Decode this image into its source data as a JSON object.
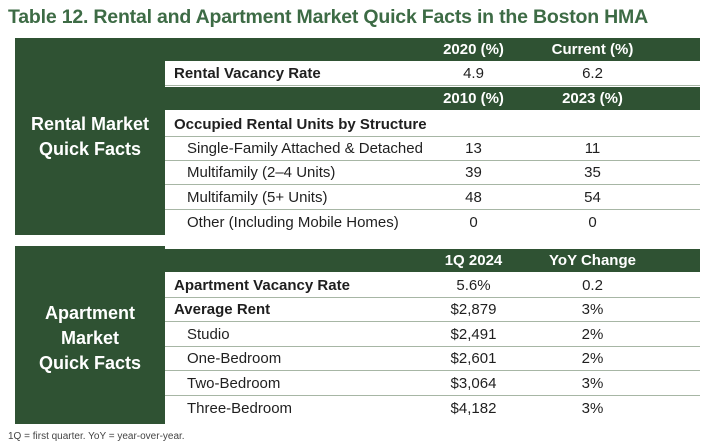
{
  "title": "Table 12. Rental and Apartment Market Quick Facts in the Boston HMA",
  "rental": {
    "side_label": "Rental Market\nQuick Facts",
    "header1": {
      "c2": "2020 (%)",
      "c3": "Current (%)"
    },
    "vacancy": {
      "label": "Rental Vacancy Rate",
      "c2": "4.9",
      "c3": "6.2"
    },
    "header2": {
      "c2": "2010 (%)",
      "c3": "2023 (%)"
    },
    "structure_heading": "Occupied Rental Units by Structure",
    "rows": [
      {
        "label": "Single-Family Attached & Detached",
        "c2": "13",
        "c3": "11"
      },
      {
        "label": "Multifamily (2–4 Units)",
        "c2": "39",
        "c3": "35"
      },
      {
        "label": "Multifamily (5+ Units)",
        "c2": "48",
        "c3": "54"
      },
      {
        "label": "Other (Including Mobile Homes)",
        "c2": "0",
        "c3": "0"
      }
    ]
  },
  "apartment": {
    "side_label": "Apartment\nMarket\nQuick Facts",
    "header": {
      "c2": "1Q 2024",
      "c3": "YoY Change"
    },
    "vacancy": {
      "label": "Apartment Vacancy Rate",
      "c2": "5.6%",
      "c3": "0.2"
    },
    "average_rent": {
      "label": "Average Rent",
      "c2": "$2,879",
      "c3": "3%"
    },
    "rows": [
      {
        "label": "Studio",
        "c2": "$2,491",
        "c3": "2%"
      },
      {
        "label": "One-Bedroom",
        "c2": "$2,601",
        "c3": "2%"
      },
      {
        "label": "Two-Bedroom",
        "c2": "$3,064",
        "c3": "3%"
      },
      {
        "label": "Three-Bedroom",
        "c2": "$4,182",
        "c3": "3%"
      }
    ]
  },
  "footnote_cut": "1Q = first quarter. YoY = year-over-year."
}
